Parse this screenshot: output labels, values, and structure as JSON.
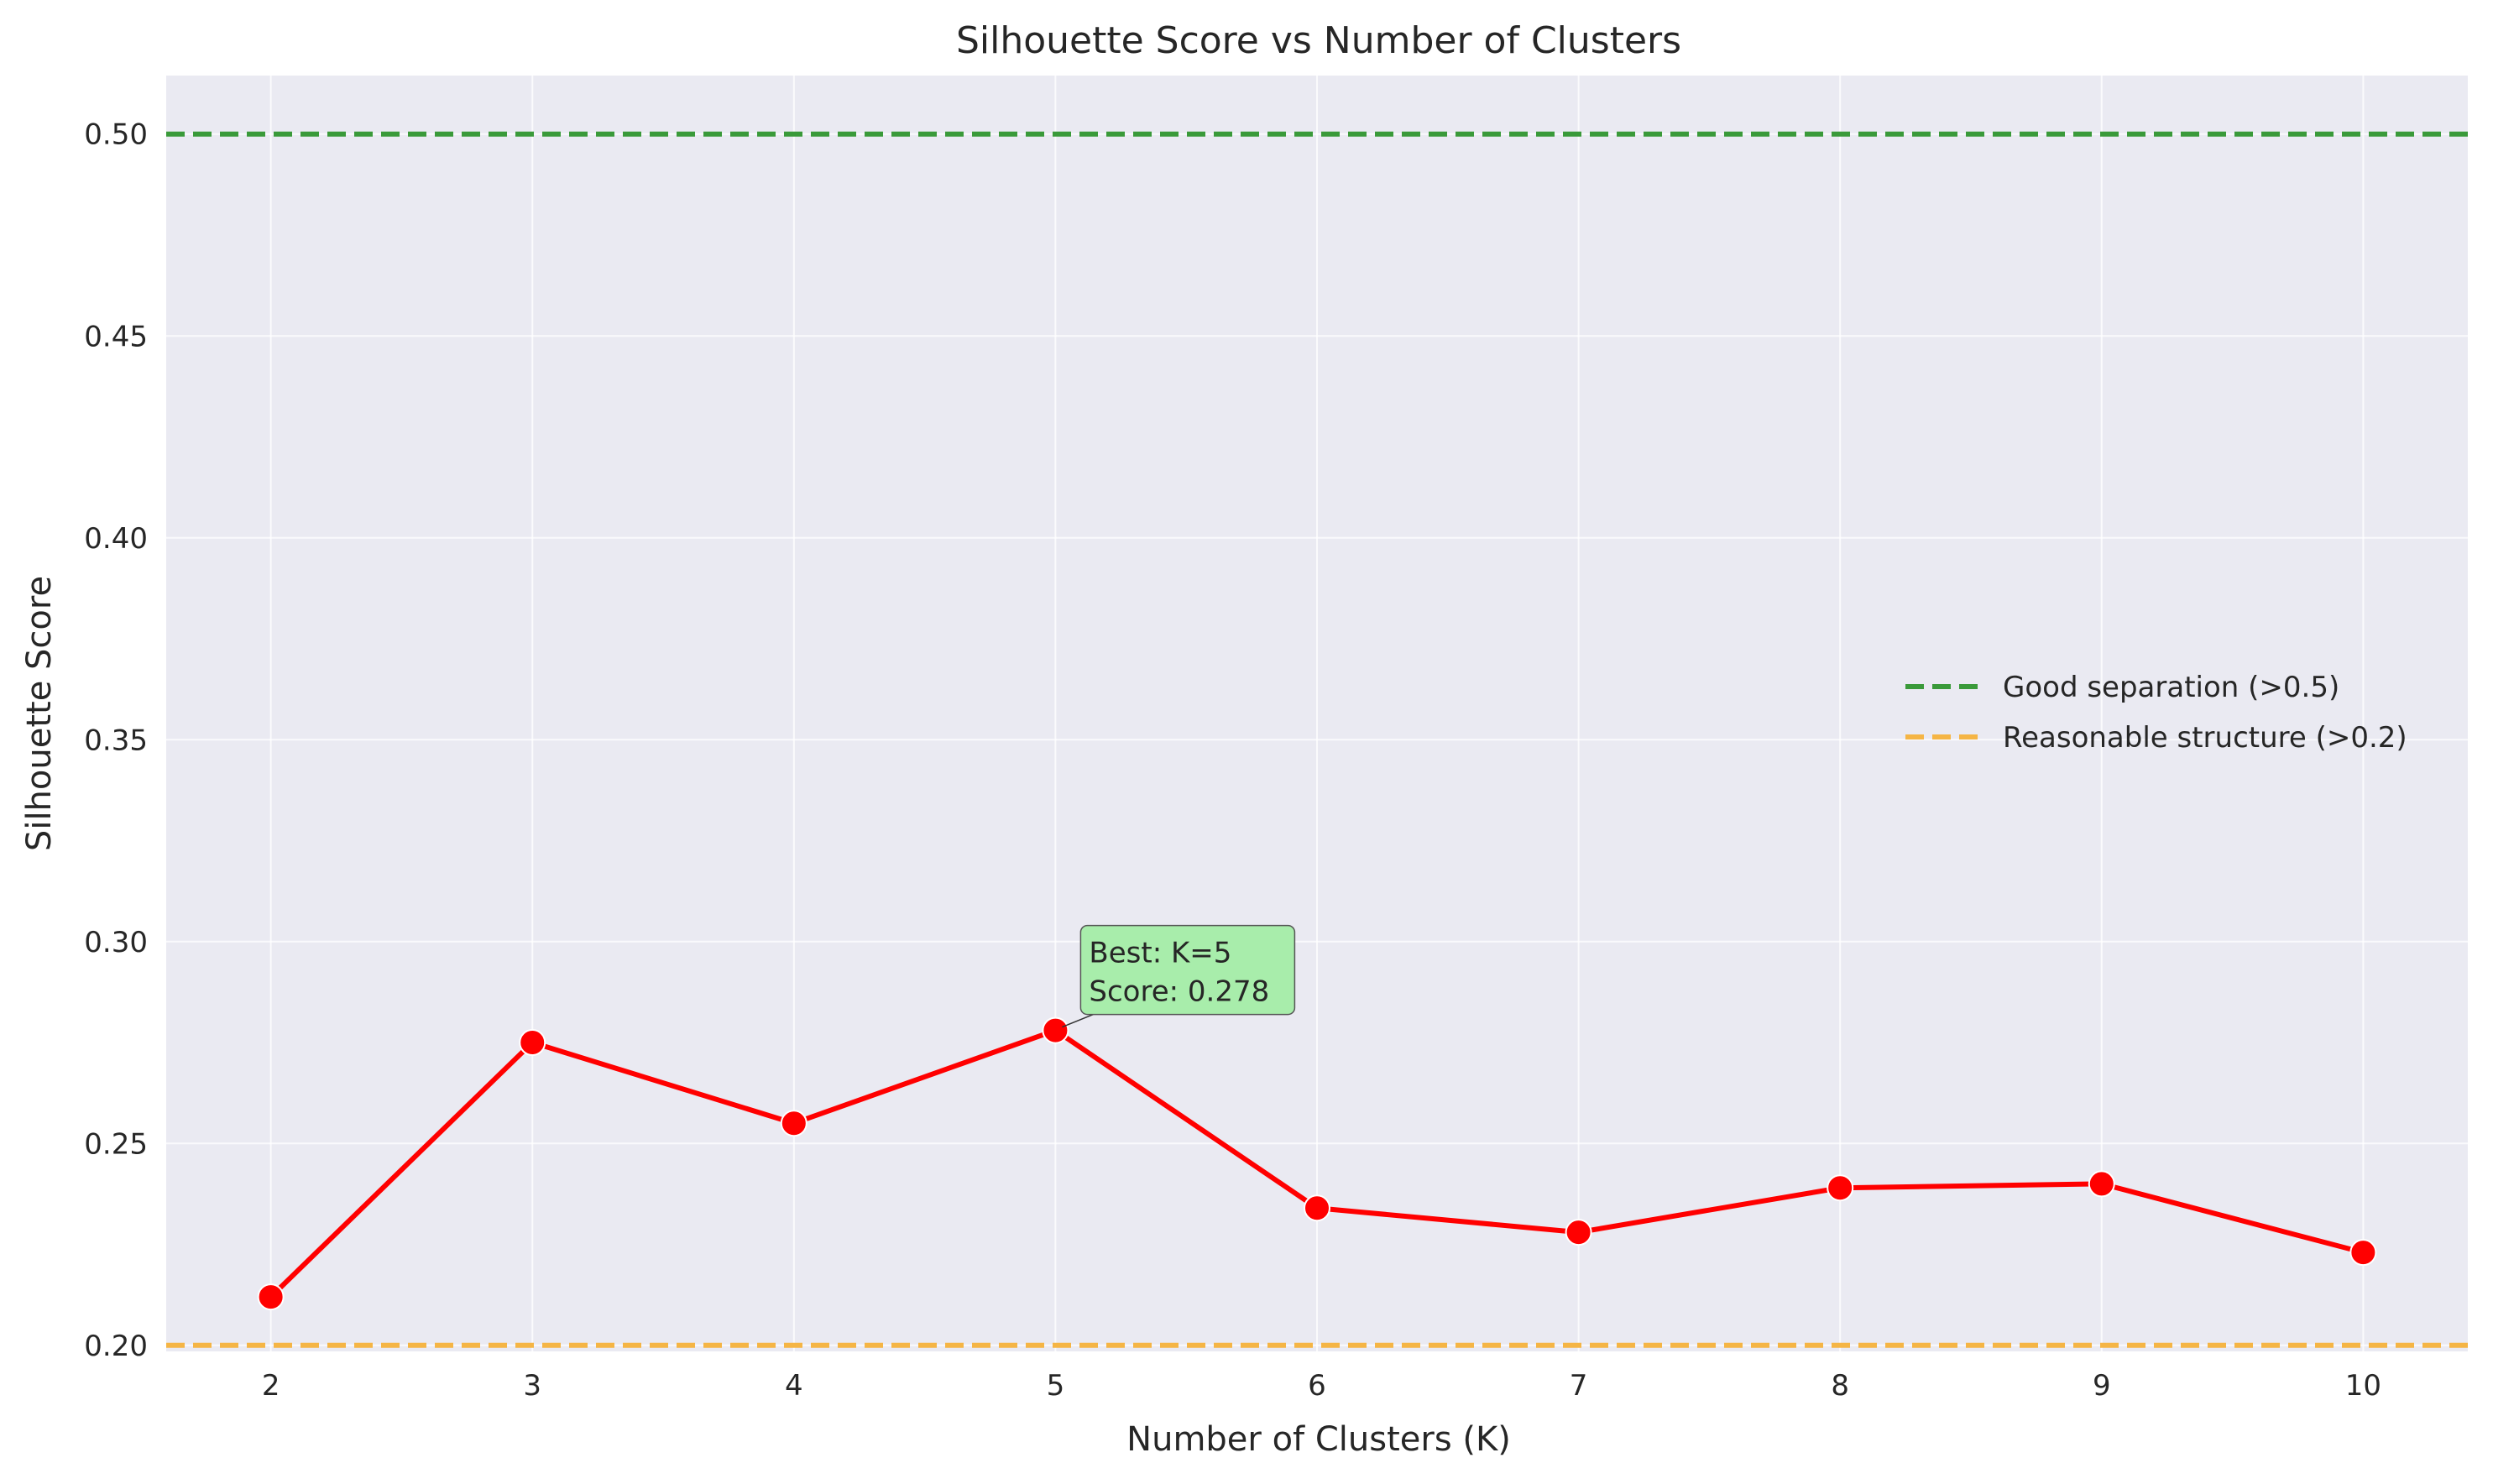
{
  "chart_data": {
    "type": "line",
    "title": "Silhouette Score vs Number of Clusters",
    "xlabel": "Number of Clusters (K)",
    "ylabel": "Silhouette Score",
    "x": [
      2,
      3,
      4,
      5,
      6,
      7,
      8,
      9,
      10
    ],
    "xticks": [
      "2",
      "3",
      "4",
      "5",
      "6",
      "7",
      "8",
      "9",
      "10"
    ],
    "xlim": [
      1.6,
      10.4
    ],
    "ylim": [
      0.1985,
      0.5145
    ],
    "yticks": [
      "0.20",
      "0.25",
      "0.30",
      "0.35",
      "0.40",
      "0.45",
      "0.50"
    ],
    "grid": true,
    "series": [
      {
        "values": [
          0.212,
          0.275,
          0.255,
          0.278,
          0.234,
          0.228,
          0.239,
          0.24,
          0.223
        ],
        "color": "#ff0000",
        "marker": "circle"
      }
    ],
    "reference_lines": [
      {
        "y": 0.5,
        "label": "Good separation (>0.5)",
        "color": "#3a9a3a",
        "style": "dashed"
      },
      {
        "y": 0.2,
        "label": "Reasonable structure (>0.2)",
        "color": "#f5b545",
        "style": "dashed"
      }
    ],
    "annotation": {
      "x": 5,
      "y": 0.278,
      "lines": [
        "Best: K=5",
        "Score: 0.278"
      ],
      "box_color": "#a8edab"
    },
    "legend_position": "center-right",
    "plot_background": "#eaeaf2"
  }
}
